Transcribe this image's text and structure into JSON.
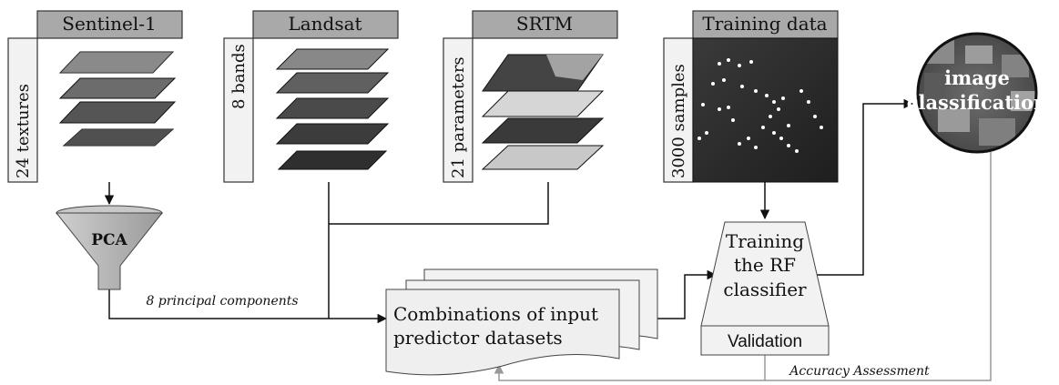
{
  "sources": [
    {
      "title": "Sentinel-1",
      "count_label": "24 textures"
    },
    {
      "title": "Landsat",
      "count_label": "8 bands"
    },
    {
      "title": "SRTM",
      "count_label": "21 parameters"
    },
    {
      "title": "Training data",
      "count_label": "3000 samples"
    }
  ],
  "pca": {
    "label": "PCA",
    "output_label": "8 principal components"
  },
  "combinations": {
    "line1": "Combinations of  input",
    "line2": "predictor datasets"
  },
  "classifier": {
    "line1": "Training",
    "line2": "the RF",
    "line3": "classifier",
    "validation": "Validation"
  },
  "result": {
    "line1": "image",
    "line2": "classification"
  },
  "feedback_label": "Accuracy Assessment"
}
